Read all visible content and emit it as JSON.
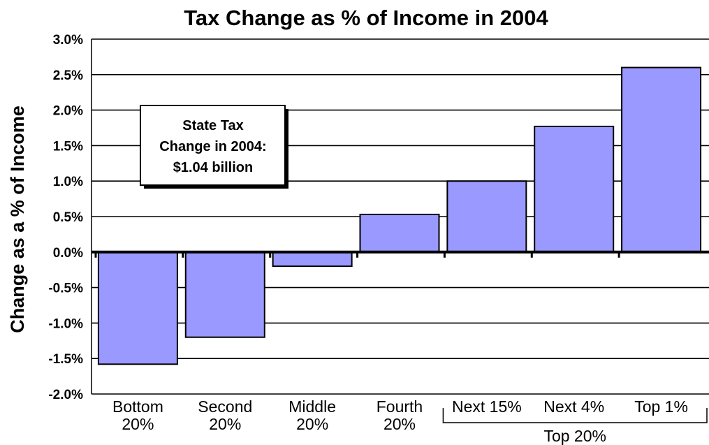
{
  "chart_data": {
    "type": "bar",
    "title": "Tax Change as % of Income in 2004",
    "ylabel": "Change as a % of Income",
    "xlabel": "",
    "ylim": [
      -2.0,
      3.0
    ],
    "yticks": [
      "3.0%",
      "2.5%",
      "2.0%",
      "1.5%",
      "1.0%",
      "0.5%",
      "0.0%",
      "-0.5%",
      "-1.0%",
      "-1.5%",
      "-2.0%"
    ],
    "grid": true,
    "legend": "none",
    "bar_color": "#9999ff",
    "categories": [
      [
        "Bottom",
        "20%"
      ],
      [
        "Second",
        "20%"
      ],
      [
        "Middle",
        "20%"
      ],
      [
        "Fourth",
        "20%"
      ],
      [
        "Next 15%"
      ],
      [
        "Next 4%"
      ],
      [
        "Top 1%"
      ]
    ],
    "values": [
      -1.58,
      -1.2,
      -0.2,
      0.53,
      1.0,
      1.77,
      2.6
    ],
    "group_label": "Top 20%",
    "annotation": [
      "State Tax",
      "Change in 2004:",
      "$1.04 billion"
    ]
  }
}
